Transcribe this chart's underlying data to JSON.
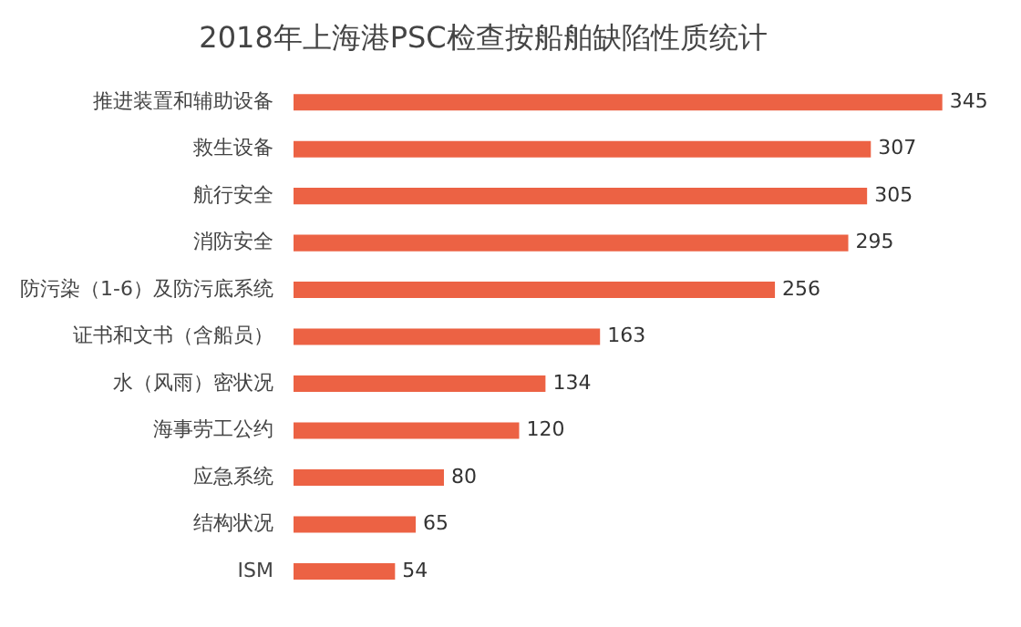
{
  "chart_data": {
    "type": "bar",
    "orientation": "horizontal",
    "title": "2018年上海港PSC检查按船舶缺陷性质统计",
    "categories": [
      "推进装置和辅助设备",
      "救生设备",
      "航行安全",
      "消防安全",
      "防污染（1-6）及防污底系统",
      "证书和文书（含船员）",
      "水（风雨）密状况",
      "海事劳工公约",
      "应急系统",
      "结构状况",
      "ISM"
    ],
    "values": [
      345,
      307,
      305,
      295,
      256,
      163,
      134,
      120,
      80,
      65,
      54
    ],
    "color": "#ec6244",
    "data_labels": true,
    "legend": false
  }
}
